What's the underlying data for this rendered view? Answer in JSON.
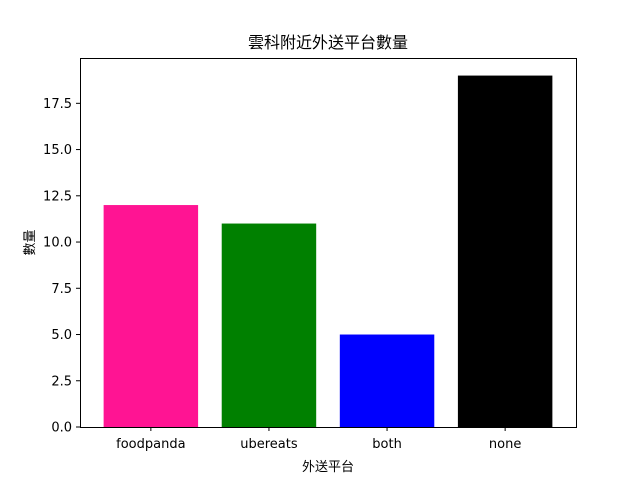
{
  "chart_data": {
    "type": "bar",
    "title": "雲科附近外送平台數量",
    "xlabel": "外送平台",
    "ylabel": "數量",
    "categories": [
      "foodpanda",
      "ubereats",
      "both",
      "none"
    ],
    "values": [
      12,
      11,
      5,
      19
    ],
    "colors": [
      "#ff1493",
      "#008000",
      "#0000ff",
      "#000000"
    ],
    "ylim": [
      0,
      19.95
    ],
    "yticks": [
      "0.0",
      "2.5",
      "5.0",
      "7.5",
      "10.0",
      "12.5",
      "15.0",
      "17.5"
    ],
    "grid": false,
    "legend": "none"
  }
}
